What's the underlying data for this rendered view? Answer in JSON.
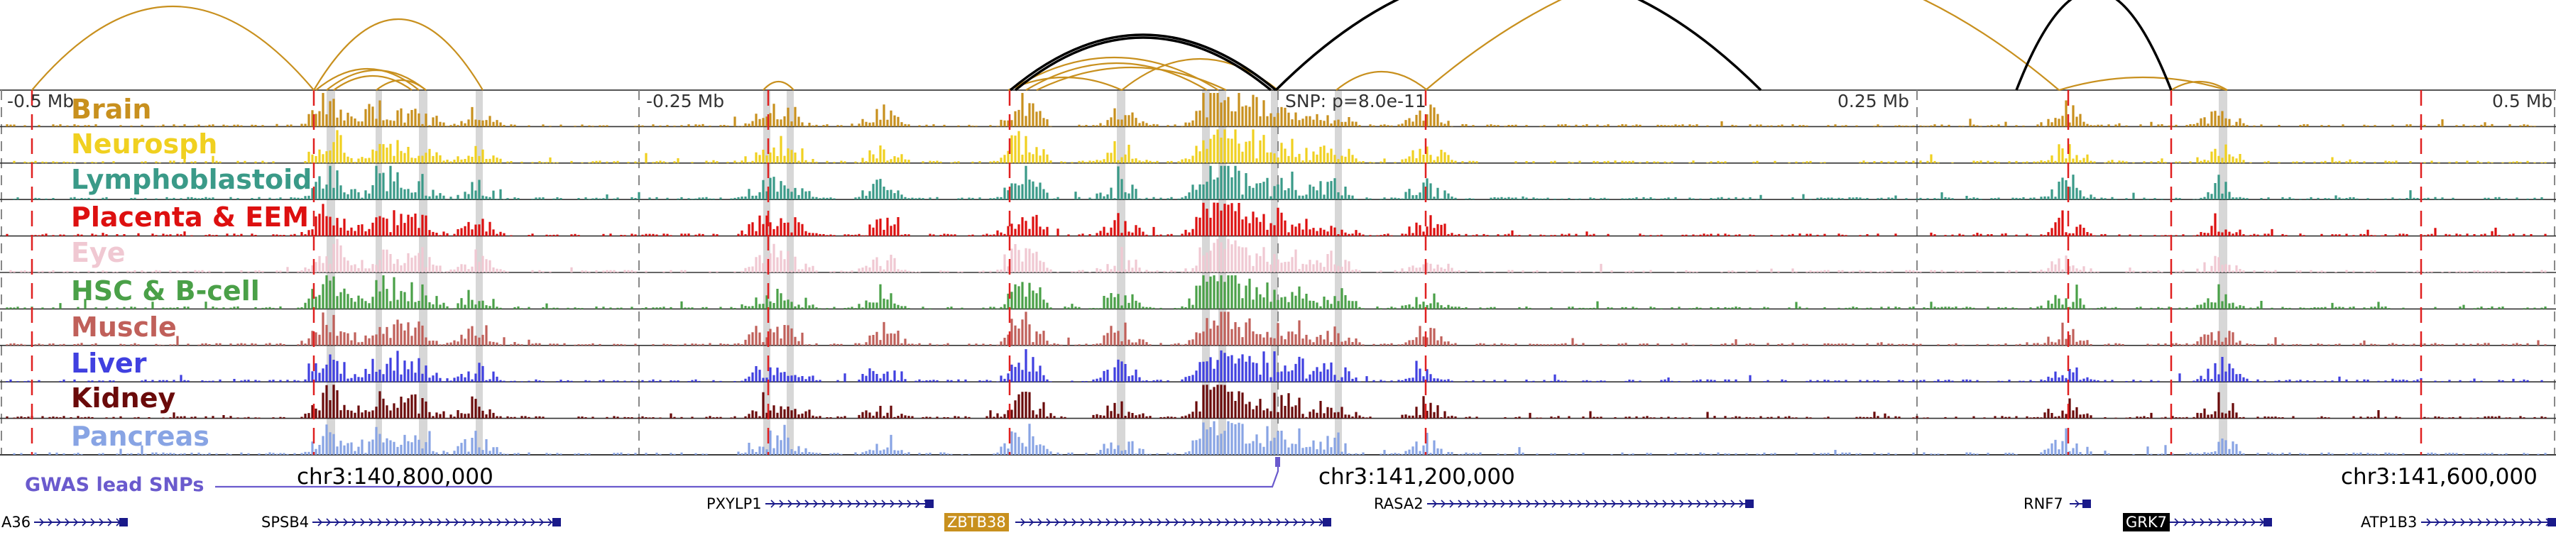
{
  "scale_labels": [
    "-0.5 Mb",
    "-0.25 Mb",
    "SNP: p=8.0e-11",
    "0.25 Mb",
    "0.5 Mb"
  ],
  "tracks": [
    {
      "name": "Brain",
      "color": "#c8901e"
    },
    {
      "name": "Neurosph",
      "color": "#f0d020"
    },
    {
      "name": "Lymphoblastoid",
      "color": "#3a9a88"
    },
    {
      "name": "Placenta & EEM",
      "color": "#dd1010"
    },
    {
      "name": "Eye",
      "color": "#f0c8d2"
    },
    {
      "name": "HSC & B-cell",
      "color": "#4aa048"
    },
    {
      "name": "Muscle",
      "color": "#c0605a"
    },
    {
      "name": "Liver",
      "color": "#4040e0"
    },
    {
      "name": "Kidney",
      "color": "#6a0a0a"
    },
    {
      "name": "Pancreas",
      "color": "#88a4e4"
    }
  ],
  "gwas_label": "GWAS lead SNPs",
  "coordinates": [
    "chr3:140,800,000",
    "chr3:141,200,000",
    "chr3:141,600,000"
  ],
  "genes": [
    {
      "name": "A36",
      "strand": "+",
      "highlight": false
    },
    {
      "name": "SPSB4",
      "strand": "+",
      "highlight": false
    },
    {
      "name": "PXYLP1",
      "strand": "+",
      "highlight": false
    },
    {
      "name": "ZBTB38",
      "strand": "+",
      "highlight": true,
      "highlight_color": "#c8901e"
    },
    {
      "name": "RASA2",
      "strand": "+",
      "highlight": false
    },
    {
      "name": "RNF7",
      "strand": "+",
      "highlight": false
    },
    {
      "name": "GRK7",
      "strand": "+",
      "highlight": true,
      "highlight_color": "#000000"
    },
    {
      "name": "ATP1B3",
      "strand": "+",
      "highlight": false
    }
  ],
  "colors": {
    "arc_gold": "#c8901e",
    "arc_black": "#000000",
    "boundary_red": "#e02020",
    "highlight_gray": "#d0d0d0",
    "gene_blue": "#1a1a8a",
    "gwas_purple": "#6a5acd"
  }
}
